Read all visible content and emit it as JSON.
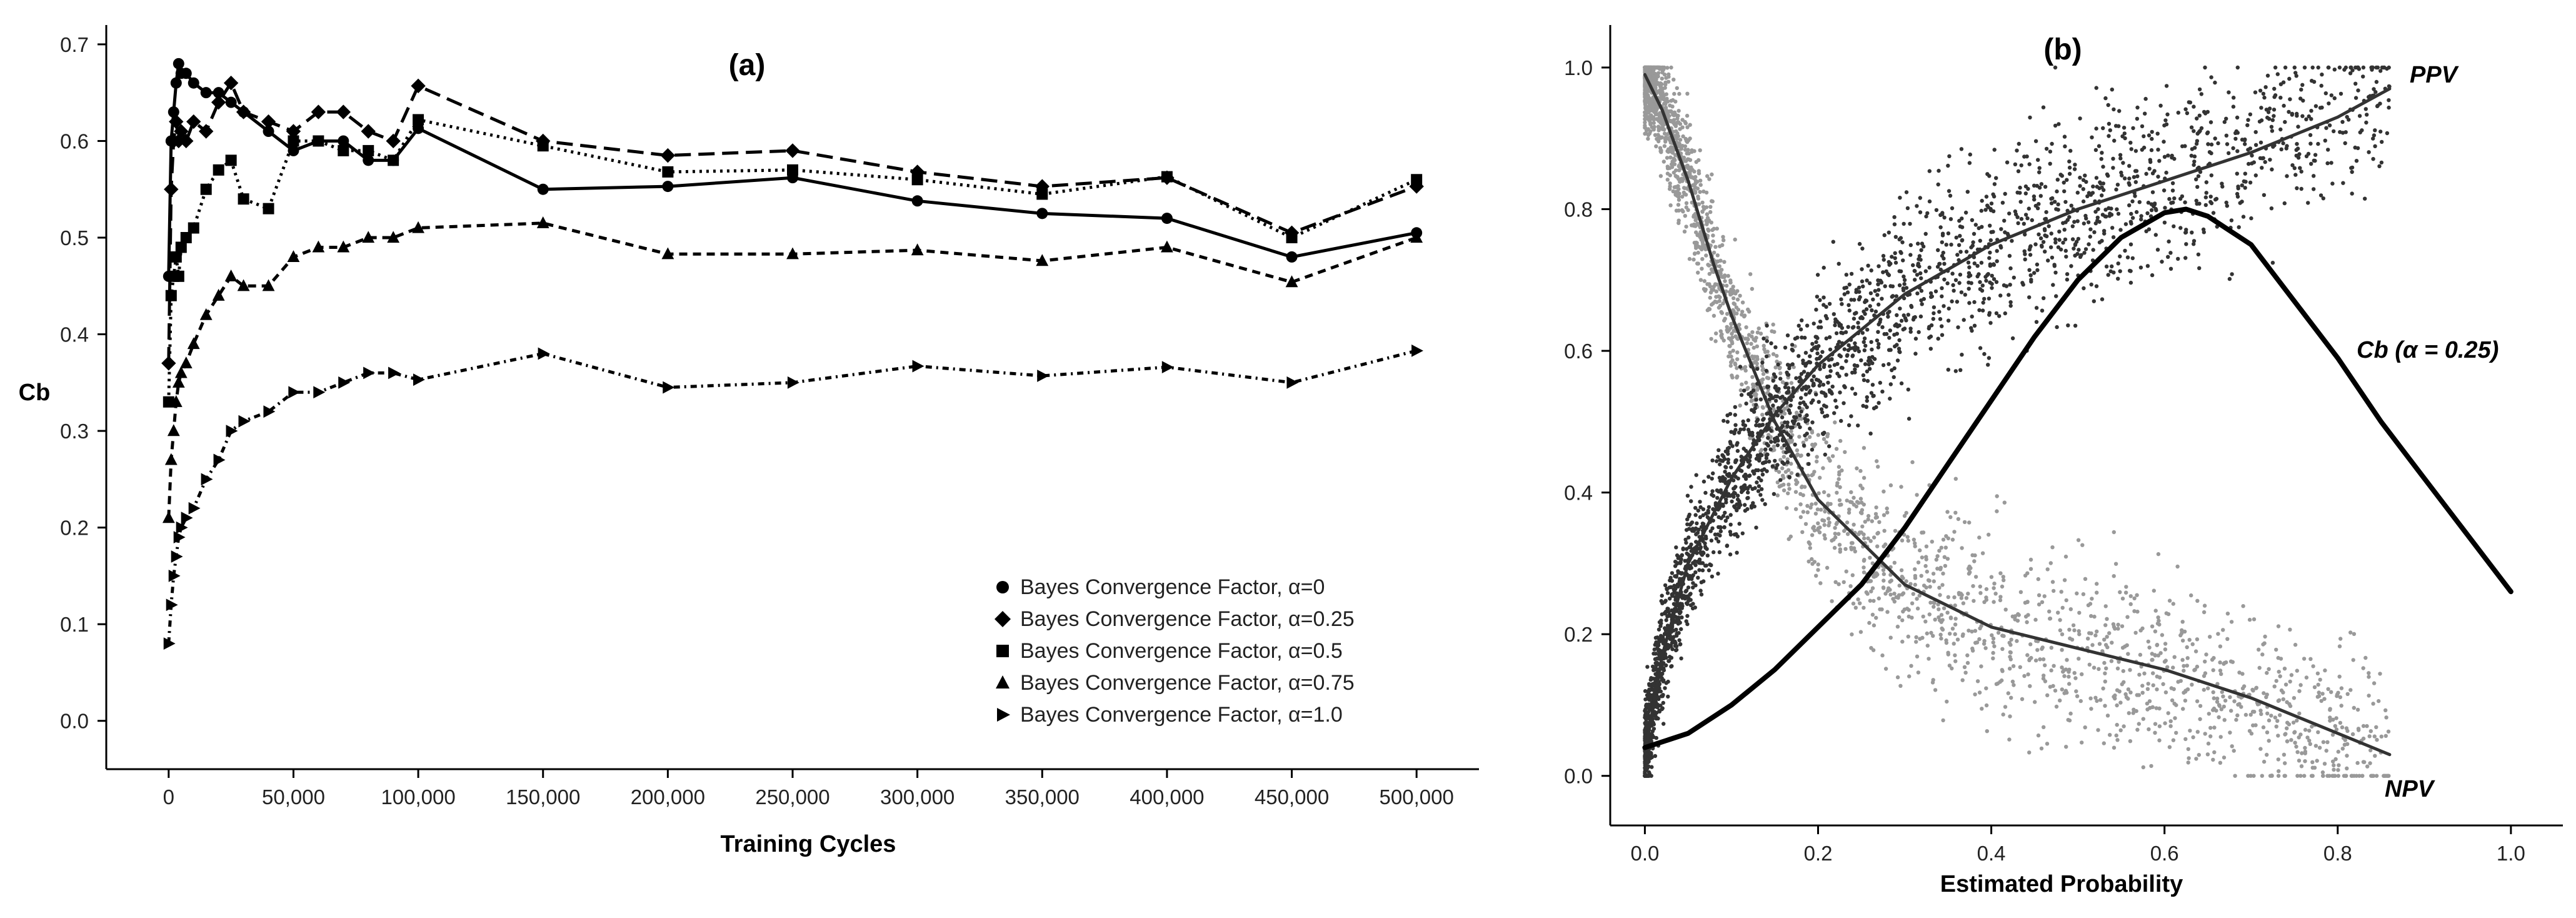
{
  "chart_data": [
    {
      "panel": "(a)",
      "type": "line",
      "title": "(a)",
      "xlabel": "Training Cycles",
      "ylabel": "Cb",
      "xlim": [
        -25000,
        525000
      ],
      "ylim": [
        -0.05,
        0.72
      ],
      "x_ticks": [
        0,
        50000,
        100000,
        150000,
        200000,
        250000,
        300000,
        350000,
        400000,
        450000,
        500000
      ],
      "x_tick_labels": [
        "0",
        "50,000",
        "100,000",
        "150,000",
        "200,000",
        "250,000",
        "300,000",
        "350,000",
        "400,000",
        "450,000",
        "500,000"
      ],
      "y_ticks": [
        0.0,
        0.1,
        0.2,
        0.3,
        0.4,
        0.5,
        0.6,
        0.7
      ],
      "y_tick_labels": [
        "0.0",
        "0.1",
        "0.2",
        "0.3",
        "0.4",
        "0.5",
        "0.6",
        "0.7"
      ],
      "legend_position": "bottom-right",
      "series": [
        {
          "name": "Bayes Convergence Factor, α=0",
          "marker": "circle",
          "dash": "solid",
          "x": [
            0,
            1000,
            2000,
            3000,
            4000,
            5000,
            7000,
            10000,
            15000,
            20000,
            25000,
            30000,
            40000,
            50000,
            60000,
            70000,
            80000,
            90000,
            100000,
            150000,
            200000,
            250000,
            300000,
            350000,
            400000,
            450000,
            500000
          ],
          "y": [
            0.46,
            0.6,
            0.63,
            0.66,
            0.68,
            0.67,
            0.67,
            0.66,
            0.65,
            0.65,
            0.64,
            0.63,
            0.61,
            0.59,
            0.6,
            0.6,
            0.58,
            0.58,
            0.613,
            0.55,
            0.553,
            0.562,
            0.538,
            0.525,
            0.52,
            0.48,
            0.505
          ]
        },
        {
          "name": "Bayes Convergence Factor, α=0.25",
          "marker": "diamond",
          "dash": "long-dash",
          "x": [
            0,
            1000,
            2000,
            3000,
            4000,
            5000,
            7000,
            10000,
            15000,
            20000,
            25000,
            30000,
            40000,
            50000,
            60000,
            70000,
            80000,
            90000,
            100000,
            150000,
            200000,
            250000,
            300000,
            350000,
            400000,
            450000,
            500000
          ],
          "y": [
            0.37,
            0.55,
            0.6,
            0.62,
            0.6,
            0.61,
            0.6,
            0.62,
            0.61,
            0.64,
            0.66,
            0.63,
            0.62,
            0.61,
            0.63,
            0.63,
            0.61,
            0.6,
            0.657,
            0.6,
            0.585,
            0.59,
            0.568,
            0.553,
            0.562,
            0.505,
            0.553
          ]
        },
        {
          "name": "Bayes Convergence Factor, α=0.5",
          "marker": "square",
          "dash": "dotted",
          "x": [
            0,
            1000,
            2000,
            3000,
            4000,
            5000,
            7000,
            10000,
            15000,
            20000,
            25000,
            30000,
            40000,
            50000,
            60000,
            70000,
            80000,
            90000,
            100000,
            150000,
            200000,
            250000,
            300000,
            350000,
            400000,
            450000,
            500000
          ],
          "y": [
            0.33,
            0.44,
            0.46,
            0.48,
            0.46,
            0.49,
            0.5,
            0.51,
            0.55,
            0.57,
            0.58,
            0.54,
            0.53,
            0.6,
            0.6,
            0.59,
            0.59,
            0.58,
            0.622,
            0.595,
            0.568,
            0.57,
            0.56,
            0.545,
            0.563,
            0.5,
            0.56
          ]
        },
        {
          "name": "Bayes Convergence Factor, α=0.75",
          "marker": "triangle-up",
          "dash": "short-dash",
          "x": [
            0,
            1000,
            2000,
            3000,
            4000,
            5000,
            7000,
            10000,
            15000,
            20000,
            25000,
            30000,
            40000,
            50000,
            60000,
            70000,
            80000,
            90000,
            100000,
            150000,
            200000,
            250000,
            300000,
            350000,
            400000,
            450000,
            500000
          ],
          "y": [
            0.21,
            0.27,
            0.3,
            0.33,
            0.35,
            0.36,
            0.37,
            0.39,
            0.42,
            0.44,
            0.46,
            0.45,
            0.45,
            0.48,
            0.49,
            0.49,
            0.5,
            0.5,
            0.51,
            0.515,
            0.483,
            0.483,
            0.487,
            0.476,
            0.49,
            0.454,
            0.5
          ]
        },
        {
          "name": "Bayes Convergence Factor, α=1.0",
          "marker": "triangle-right",
          "dash": "dash-dot",
          "x": [
            0,
            1000,
            2000,
            3000,
            4000,
            5000,
            7000,
            10000,
            15000,
            20000,
            25000,
            30000,
            40000,
            50000,
            60000,
            70000,
            80000,
            90000,
            100000,
            150000,
            200000,
            250000,
            300000,
            350000,
            400000,
            450000,
            500000
          ],
          "y": [
            0.08,
            0.12,
            0.15,
            0.17,
            0.19,
            0.2,
            0.21,
            0.22,
            0.25,
            0.27,
            0.3,
            0.31,
            0.32,
            0.34,
            0.34,
            0.35,
            0.36,
            0.36,
            0.353,
            0.38,
            0.345,
            0.35,
            0.367,
            0.357,
            0.366,
            0.35,
            0.383
          ]
        }
      ]
    },
    {
      "panel": "(b)",
      "type": "scatter",
      "title": "(b)",
      "xlabel": "Estimated Probability",
      "ylabel": "",
      "xlim": [
        -0.04,
        1.06
      ],
      "ylim": [
        -0.07,
        1.06
      ],
      "x_ticks": [
        0.0,
        0.2,
        0.4,
        0.6,
        0.8,
        1.0
      ],
      "x_tick_labels": [
        "0.0",
        "0.2",
        "0.4",
        "0.6",
        "0.8",
        "1.0"
      ],
      "y_ticks": [
        0.0,
        0.2,
        0.4,
        0.6,
        0.8,
        1.0
      ],
      "y_tick_labels": [
        "0.0",
        "0.2",
        "0.4",
        "0.6",
        "0.8",
        "1.0"
      ],
      "scatter_colors": {
        "PPV_points": "#333333",
        "NPV_points": "#999999"
      },
      "curves": [
        {
          "name": "PPV",
          "annotation": "PPV",
          "color": "#333333",
          "x": [
            0.0,
            0.02,
            0.05,
            0.1,
            0.15,
            0.2,
            0.3,
            0.4,
            0.5,
            0.6,
            0.7,
            0.8,
            0.86
          ],
          "y": [
            0.03,
            0.17,
            0.3,
            0.42,
            0.51,
            0.58,
            0.68,
            0.75,
            0.8,
            0.84,
            0.88,
            0.93,
            0.97
          ]
        },
        {
          "name": "NPV",
          "annotation": "NPV",
          "color": "#333333",
          "x": [
            0.0,
            0.02,
            0.05,
            0.08,
            0.1,
            0.15,
            0.2,
            0.3,
            0.4,
            0.5,
            0.6,
            0.7,
            0.8,
            0.86
          ],
          "y": [
            0.99,
            0.94,
            0.84,
            0.72,
            0.65,
            0.5,
            0.39,
            0.27,
            0.21,
            0.18,
            0.15,
            0.11,
            0.06,
            0.03
          ]
        },
        {
          "name": "Cb (α = 0.25)",
          "annotation": "Cb (α = 0.25)",
          "color": "#000000",
          "x": [
            0.0,
            0.05,
            0.1,
            0.15,
            0.2,
            0.25,
            0.3,
            0.35,
            0.4,
            0.45,
            0.5,
            0.55,
            0.6,
            0.625,
            0.65,
            0.7,
            0.75,
            0.8,
            0.85,
            0.9,
            0.95,
            1.0
          ],
          "y": [
            0.04,
            0.06,
            0.1,
            0.15,
            0.21,
            0.27,
            0.35,
            0.44,
            0.53,
            0.62,
            0.7,
            0.76,
            0.795,
            0.8,
            0.79,
            0.75,
            0.67,
            0.59,
            0.5,
            0.42,
            0.34,
            0.26
          ]
        }
      ]
    }
  ]
}
